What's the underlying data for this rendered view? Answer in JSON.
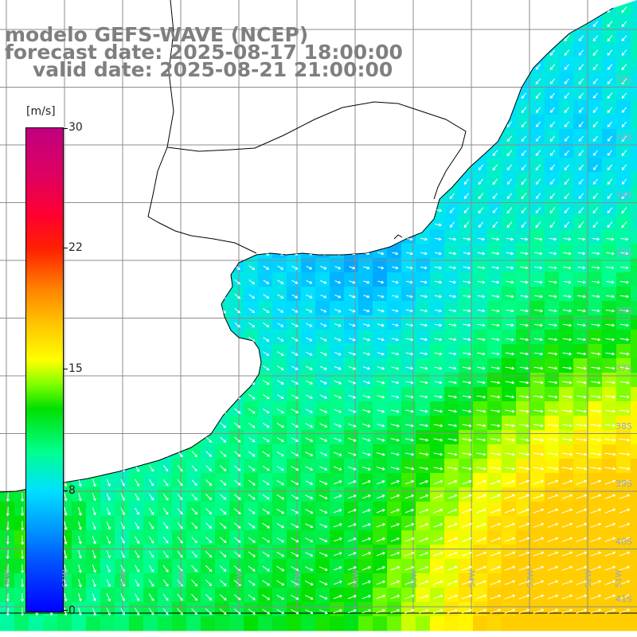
{
  "titles": {
    "model": "modelo GEFS-WAVE (NCEP)",
    "forecast": "forecast date: 2025-08-17 18:00:00",
    "valid": "valid date: 2025-08-21 21:00:00"
  },
  "colorbar": {
    "unit": "[m/s]",
    "ticks": [
      "30",
      "22",
      "15",
      "8",
      "0"
    ],
    "tick_values": [
      30,
      22,
      15,
      8,
      0
    ],
    "range": [
      0,
      30
    ],
    "colors": [
      "#0000ff",
      "#00a0ff",
      "#00e0ff",
      "#00e000",
      "#ffff00",
      "#ff8000",
      "#ff0000",
      "#c00080"
    ]
  },
  "map": {
    "lat_labels": [
      "32S",
      "33S",
      "34S",
      "35S",
      "36S",
      "37S",
      "38S",
      "39S",
      "40S",
      "41S"
    ],
    "lon_labels": [
      "62W",
      "61W",
      "60W",
      "59W",
      "58W",
      "57W",
      "56W",
      "55W",
      "54W",
      "53W",
      "52W",
      "51W"
    ],
    "land_color": "#ffffff",
    "grid_color": "#808080",
    "arrow_color": "#ffffff"
  }
}
